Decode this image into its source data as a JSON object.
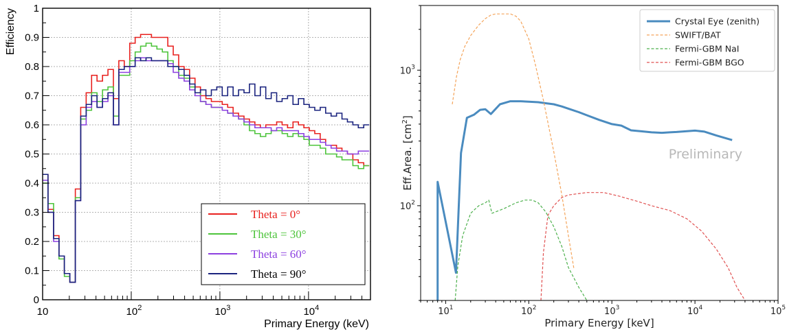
{
  "chart_data": [
    {
      "type": "line",
      "step": true,
      "xscale": "log",
      "xlim": [
        10,
        50000
      ],
      "ylim": [
        0,
        1
      ],
      "xlabel": "Primary Energy (keV)",
      "ylabel": "Efficiency",
      "x_ticks": [
        {
          "value": 10,
          "label": "10"
        },
        {
          "value": 100,
          "label": "10",
          "sup": "2"
        },
        {
          "value": 1000,
          "label": "10",
          "sup": "3"
        },
        {
          "value": 10000,
          "label": "10",
          "sup": "4"
        }
      ],
      "y_ticks": [
        "0",
        "0.1",
        "0.2",
        "0.3",
        "0.4",
        "0.5",
        "0.6",
        "0.7",
        "0.8",
        "0.9",
        "1"
      ],
      "grid": true,
      "legend_position": "bottom-right",
      "bin_edges": [
        10,
        11.5,
        13.3,
        15.3,
        17.6,
        20.3,
        23.4,
        26.9,
        31,
        35.7,
        41.1,
        47.4,
        54.6,
        62.9,
        72.4,
        83.4,
        96.1,
        110.7,
        127.5,
        146.8,
        169.1,
        194.8,
        224.4,
        258.5,
        297.7,
        342.9,
        395,
        455,
        524.1,
        603.7,
        695.4,
        801,
        922.7,
        1062.8,
        1224.3,
        1410.2,
        1624.4,
        1871.1,
        2155.3,
        2482.7,
        2859.8,
        3294.1,
        3794.4,
        4370.7,
        5034.5,
        5799.2,
        6680,
        7694.6,
        8863.3,
        10209.4,
        11760,
        13546.2,
        15603.5,
        17973.5,
        20703.4,
        23847.9,
        27470,
        31642.2,
        36448,
        41983.7,
        48360
      ],
      "series": [
        {
          "name": "Theta = 0°",
          "color": "#e8201e",
          "values": [
            0.43,
            0.31,
            0.22,
            0.15,
            0.09,
            0.06,
            0.38,
            0.66,
            0.71,
            0.77,
            0.75,
            0.77,
            0.79,
            0.69,
            0.82,
            0.8,
            0.88,
            0.9,
            0.91,
            0.91,
            0.9,
            0.9,
            0.9,
            0.87,
            0.84,
            0.8,
            0.79,
            0.76,
            0.73,
            0.7,
            0.69,
            0.68,
            0.68,
            0.67,
            0.66,
            0.64,
            0.63,
            0.62,
            0.61,
            0.6,
            0.59,
            0.6,
            0.6,
            0.61,
            0.6,
            0.59,
            0.61,
            0.6,
            0.59,
            0.58,
            0.57,
            0.55,
            0.53,
            0.53,
            0.52,
            0.51,
            0.5,
            0.48,
            0.47,
            0.46
          ]
        },
        {
          "name": "Theta = 30°",
          "color": "#4cc43a",
          "values": [
            0.4,
            0.33,
            0.21,
            0.14,
            0.08,
            0.06,
            0.35,
            0.62,
            0.65,
            0.71,
            0.68,
            0.72,
            0.73,
            0.63,
            0.77,
            0.77,
            0.82,
            0.85,
            0.87,
            0.88,
            0.87,
            0.86,
            0.85,
            0.82,
            0.8,
            0.77,
            0.76,
            0.73,
            0.71,
            0.68,
            0.67,
            0.66,
            0.66,
            0.65,
            0.64,
            0.63,
            0.62,
            0.6,
            0.58,
            0.57,
            0.56,
            0.57,
            0.58,
            0.58,
            0.57,
            0.56,
            0.57,
            0.56,
            0.55,
            0.53,
            0.53,
            0.52,
            0.5,
            0.5,
            0.49,
            0.48,
            0.48,
            0.46,
            0.45,
            0.46
          ]
        },
        {
          "name": "Theta = 60°",
          "color": "#8c3fe0",
          "values": [
            0.41,
            0.3,
            0.2,
            0.15,
            0.09,
            0.06,
            0.34,
            0.6,
            0.66,
            0.68,
            0.66,
            0.68,
            0.7,
            0.6,
            0.78,
            0.78,
            0.8,
            0.82,
            0.83,
            0.82,
            0.82,
            0.82,
            0.82,
            0.81,
            0.78,
            0.76,
            0.75,
            0.72,
            0.7,
            0.68,
            0.67,
            0.66,
            0.66,
            0.65,
            0.64,
            0.63,
            0.62,
            0.61,
            0.6,
            0.59,
            0.59,
            0.59,
            0.58,
            0.59,
            0.58,
            0.58,
            0.58,
            0.57,
            0.56,
            0.55,
            0.55,
            0.54,
            0.53,
            0.52,
            0.51,
            0.51,
            0.5,
            0.5,
            0.51,
            0.51
          ]
        },
        {
          "name": "Theta = 90°",
          "color": "#1a237e",
          "values": [
            0.43,
            0.3,
            0.21,
            0.15,
            0.09,
            0.06,
            0.34,
            0.63,
            0.67,
            0.7,
            0.66,
            0.69,
            0.71,
            0.6,
            0.79,
            0.8,
            0.8,
            0.83,
            0.82,
            0.83,
            0.82,
            0.82,
            0.82,
            0.8,
            0.8,
            0.79,
            0.77,
            0.74,
            0.71,
            0.72,
            0.7,
            0.72,
            0.73,
            0.7,
            0.73,
            0.7,
            0.72,
            0.71,
            0.74,
            0.7,
            0.73,
            0.69,
            0.71,
            0.68,
            0.69,
            0.7,
            0.67,
            0.69,
            0.67,
            0.66,
            0.65,
            0.66,
            0.64,
            0.63,
            0.64,
            0.62,
            0.61,
            0.6,
            0.59,
            0.6
          ]
        }
      ]
    },
    {
      "type": "line",
      "xscale": "log",
      "yscale": "log",
      "xlim": [
        5,
        100000
      ],
      "ylim": [
        20,
        3000
      ],
      "xlabel": "Primary Energy [keV]",
      "ylabel": "Eff.Area. [cm",
      "ylabel_sup": "2",
      "ylabel_end": "]",
      "x_ticks": [
        {
          "value": 10,
          "label": "10",
          "sup": "1"
        },
        {
          "value": 100,
          "label": "10",
          "sup": "2"
        },
        {
          "value": 1000,
          "label": "10",
          "sup": "3"
        },
        {
          "value": 10000,
          "label": "10",
          "sup": "4"
        },
        {
          "value": 100000,
          "label": "10",
          "sup": "5"
        }
      ],
      "y_ticks": [
        {
          "value": 100,
          "label": "10",
          "sup": "2"
        },
        {
          "value": 1000,
          "label": "10",
          "sup": "3"
        }
      ],
      "grid": false,
      "legend_position": "top-right",
      "annotation": "Preliminary",
      "series": [
        {
          "name": "Crystal Eye (zenith)",
          "color": "#4a8bbf",
          "style": "solid",
          "x": [
            8,
            8,
            13.3,
            15.3,
            18,
            22,
            26,
            30,
            35,
            45,
            60,
            80,
            100,
            130,
            160,
            200,
            250,
            300,
            400,
            500,
            700,
            1000,
            1300,
            1700,
            2200,
            3000,
            4000,
            5000,
            6000,
            8000,
            10000,
            13000,
            18000,
            28000
          ],
          "y": [
            20,
            150,
            32,
            245,
            445,
            470,
            510,
            515,
            475,
            560,
            590,
            590,
            585,
            580,
            570,
            560,
            540,
            520,
            490,
            465,
            430,
            400,
            390,
            360,
            355,
            348,
            345,
            348,
            350,
            355,
            358,
            352,
            330,
            305
          ]
        },
        {
          "name": "SWIFT/BAT",
          "color": "#f4a45a",
          "style": "dashed",
          "x": [
            12,
            13.5,
            15,
            17,
            20,
            25,
            30,
            35,
            40,
            50,
            60,
            70,
            80,
            100,
            120,
            150,
            200,
            250,
            300,
            350
          ],
          "y": [
            560,
            900,
            1200,
            1500,
            1800,
            2150,
            2400,
            2550,
            2600,
            2600,
            2600,
            2500,
            2300,
            1700,
            1100,
            600,
            250,
            120,
            60,
            34
          ]
        },
        {
          "name": "Fermi-GBM NaI",
          "color": "#4cb04c",
          "style": "dashed",
          "x": [
            13,
            14,
            16,
            20,
            25,
            30,
            33,
            36,
            50,
            70,
            90,
            110,
            130,
            160,
            200,
            250,
            300,
            400,
            500
          ],
          "y": [
            20,
            36,
            60,
            88,
            100,
            105,
            110,
            88,
            95,
            105,
            110,
            110,
            105,
            90,
            70,
            50,
            35,
            25,
            20
          ]
        },
        {
          "name": "Fermi-GBM BGO",
          "color": "#e05050",
          "style": "dashed",
          "x": [
            140,
            150,
            170,
            200,
            250,
            300,
            500,
            800,
            1200,
            2000,
            3000,
            5000,
            8000,
            12000,
            18000,
            25000,
            32000,
            40000
          ],
          "y": [
            20,
            45,
            85,
            100,
            115,
            120,
            125,
            125,
            118,
            108,
            100,
            92,
            80,
            65,
            48,
            35,
            25,
            20
          ]
        }
      ]
    }
  ]
}
